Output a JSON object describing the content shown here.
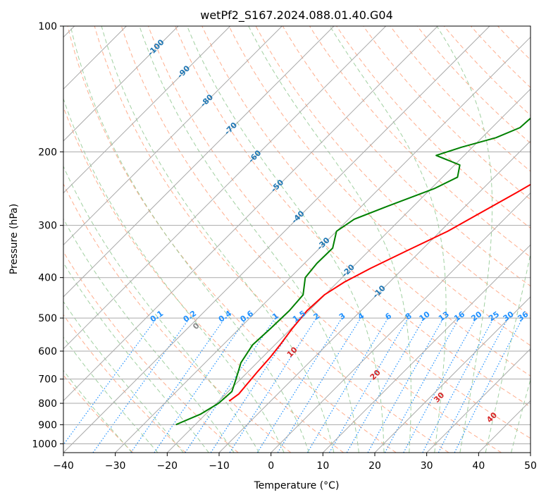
{
  "chart_data": {
    "type": "line",
    "title": "wetPf2_S167.2024.088.01.40.G04",
    "xlabel": "Temperature (°C)",
    "ylabel": "Pressure (hPa)",
    "xlim": [
      -40,
      50
    ],
    "ylim": [
      1050,
      100
    ],
    "y_scale": "log",
    "x_ticks": [
      "−40",
      "−30",
      "−20",
      "−10",
      "0",
      "10",
      "20",
      "30",
      "40",
      "50"
    ],
    "y_ticks": [
      "100",
      "200",
      "300",
      "400",
      "500",
      "600",
      "700",
      "800",
      "900",
      "1000"
    ],
    "grid": true,
    "skew": true,
    "series": [
      {
        "color": "#ff0000",
        "points": [
          [
            -18.0,
            790
          ],
          [
            -17.5,
            760
          ],
          [
            -17.8,
            720
          ],
          [
            -18.2,
            670
          ],
          [
            -18.5,
            620
          ],
          [
            -19.0,
            580
          ],
          [
            -19.8,
            530
          ],
          [
            -20.4,
            480
          ],
          [
            -20.1,
            440
          ],
          [
            -18.7,
            410
          ],
          [
            -16.3,
            380
          ],
          [
            -12.7,
            345
          ],
          [
            -8.6,
            310
          ],
          [
            -5.8,
            280
          ],
          [
            -2.7,
            250
          ],
          [
            0.5,
            220
          ],
          [
            2.9,
            200
          ],
          [
            6.0,
            180
          ],
          [
            9.0,
            160
          ],
          [
            12.0,
            140
          ],
          [
            14.5,
            122
          ],
          [
            16.0,
            110
          ],
          [
            17.0,
            100
          ]
        ]
      },
      {
        "color": "#008000",
        "points": [
          [
            -23.7,
            900
          ],
          [
            -21.0,
            850
          ],
          [
            -19.6,
            800
          ],
          [
            -19.3,
            750
          ],
          [
            -20.9,
            700
          ],
          [
            -23.1,
            640
          ],
          [
            -24.3,
            580
          ],
          [
            -24.0,
            530
          ],
          [
            -23.8,
            480
          ],
          [
            -24.2,
            440
          ],
          [
            -27.1,
            400
          ],
          [
            -27.6,
            370
          ],
          [
            -27.5,
            340
          ],
          [
            -30.0,
            310
          ],
          [
            -28.9,
            290
          ],
          [
            -25.0,
            270
          ],
          [
            -19.4,
            245
          ],
          [
            -17.1,
            230
          ],
          [
            -19.0,
            215
          ],
          [
            -25.4,
            204
          ],
          [
            -22.1,
            195
          ],
          [
            -17.3,
            185
          ],
          [
            -14.6,
            175
          ],
          [
            -14.2,
            160
          ],
          [
            -14.3,
            145
          ],
          [
            -13.5,
            130
          ],
          [
            -10.4,
            115
          ],
          [
            -5.6,
            100
          ]
        ]
      }
    ],
    "isotherm_labels": [
      "-100",
      "-90",
      "-80",
      "-70",
      "-60",
      "-50",
      "-40",
      "-30",
      "-20",
      "-10"
    ],
    "mixing_ratio_labels": [
      "0.1",
      "0.2",
      "0.4",
      "0.6",
      "1",
      "1.5",
      "2",
      "3",
      "4",
      "6",
      "8",
      "10",
      "13",
      "16",
      "20",
      "25",
      "30",
      "36"
    ],
    "moist_adiabat_labels": [
      "0",
      "10",
      "20",
      "30",
      "40"
    ],
    "colors": {
      "temperature": "#ff0000",
      "dewpoint": "#008000",
      "isotherm_label": "#1f77b4",
      "mixing_ratio": "#1e90ff",
      "adiabat_label": "#d62728",
      "dry_adiabat": "#ffa07a",
      "moist_adiabat": "#90c890",
      "grid": "#aaaaaa"
    }
  }
}
